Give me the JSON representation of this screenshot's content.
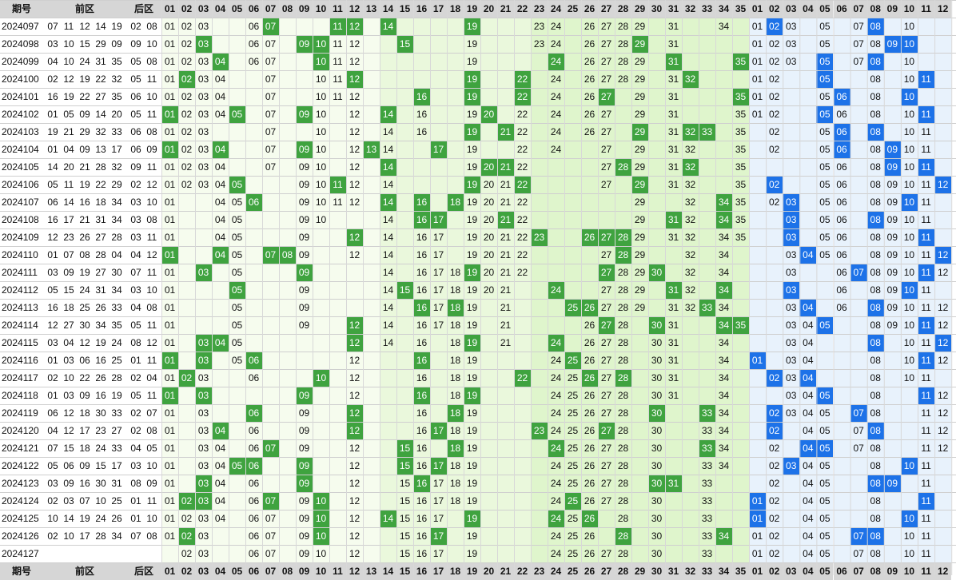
{
  "header": {
    "period": "期号",
    "front": "前区",
    "back": "后区",
    "front_cols": [
      "01",
      "02",
      "03",
      "04",
      "05",
      "06",
      "07",
      "08",
      "09",
      "10",
      "11",
      "12",
      "13",
      "14",
      "15",
      "16",
      "17",
      "18",
      "19",
      "20",
      "21",
      "22",
      "23",
      "24",
      "25",
      "26",
      "27",
      "28",
      "29",
      "30",
      "31",
      "32",
      "33",
      "34",
      "35"
    ],
    "back_cols": [
      "01",
      "02",
      "03",
      "04",
      "05",
      "06",
      "07",
      "08",
      "09",
      "10",
      "11",
      "12"
    ]
  },
  "colors": {
    "front_red": "#d81e06",
    "back_blue": "#0d5fd8",
    "hit_green": "#3fa33f",
    "hit_blue": "#1d72e8",
    "header_gray": "#d6d6d6",
    "zone_a": "#f6fcee",
    "zone_b": "#eaf8dc",
    "zone_c": "#dff5cc",
    "back_zone": "#e8f2fc"
  },
  "chart_data": {
    "type": "table",
    "title": "",
    "rows": [
      {
        "period": "2024097",
        "front": [
          "07",
          "11",
          "12",
          "14",
          "19"
        ],
        "back": [
          "02",
          "08"
        ],
        "fshow": [
          1,
          2,
          3,
          6,
          7,
          23,
          24,
          26,
          27,
          28,
          29,
          31,
          34
        ],
        "bshow": [
          1,
          2,
          3,
          5,
          7,
          8,
          10
        ]
      },
      {
        "period": "2024098",
        "front": [
          "03",
          "10",
          "15",
          "29",
          "09"
        ],
        "back": [
          "09",
          "10"
        ],
        "fshow": [
          1,
          2,
          3,
          6,
          7,
          11,
          12,
          19,
          23,
          24,
          26,
          27,
          28,
          29,
          31
        ],
        "bshow": [
          1,
          2,
          3,
          5,
          7,
          8
        ]
      },
      {
        "period": "2024099",
        "front": [
          "04",
          "10",
          "24",
          "31",
          "35"
        ],
        "back": [
          "05",
          "08"
        ],
        "fshow": [
          1,
          2,
          3,
          6,
          7,
          11,
          12,
          19,
          24,
          26,
          27,
          28,
          29,
          31
        ],
        "bshow": [
          1,
          2,
          3,
          7,
          8,
          10
        ]
      },
      {
        "period": "2024100",
        "front": [
          "02",
          "12",
          "19",
          "22",
          "32"
        ],
        "back": [
          "05",
          "11"
        ],
        "fshow": [
          1,
          2,
          3,
          4,
          7,
          10,
          11,
          12,
          19,
          24,
          26,
          27,
          28,
          29,
          31
        ],
        "bshow": [
          1,
          2,
          5,
          8,
          10
        ]
      },
      {
        "period": "2024101",
        "front": [
          "16",
          "19",
          "22",
          "27",
          "35"
        ],
        "back": [
          "06",
          "10"
        ],
        "fshow": [
          1,
          2,
          3,
          4,
          7,
          10,
          11,
          12,
          19,
          24,
          26,
          27,
          29,
          31
        ],
        "bshow": [
          1,
          2,
          5,
          8,
          10
        ]
      },
      {
        "period": "2024102",
        "front": [
          "01",
          "05",
          "09",
          "14",
          "20"
        ],
        "back": [
          "05",
          "11"
        ],
        "fshow": [
          2,
          3,
          4,
          7,
          10,
          12,
          16,
          19,
          22,
          24,
          26,
          27,
          29,
          31,
          35
        ],
        "bshow": [
          1,
          2,
          5,
          6,
          8,
          10
        ]
      },
      {
        "period": "2024103",
        "front": [
          "19",
          "21",
          "29",
          "32",
          "33"
        ],
        "back": [
          "06",
          "08"
        ],
        "fshow": [
          1,
          2,
          3,
          7,
          10,
          12,
          14,
          16,
          19,
          22,
          24,
          26,
          27,
          29,
          31,
          35
        ],
        "bshow": [
          2,
          5,
          8,
          10,
          11
        ]
      },
      {
        "period": "2024104",
        "front": [
          "01",
          "04",
          "09",
          "13",
          "17"
        ],
        "back": [
          "06",
          "09"
        ],
        "fshow": [
          1,
          2,
          3,
          7,
          10,
          12,
          14,
          19,
          22,
          24,
          27,
          29,
          31,
          32,
          35
        ],
        "bshow": [
          2,
          5,
          6,
          8,
          10,
          11
        ]
      },
      {
        "period": "2024105",
        "front": [
          "14",
          "20",
          "21",
          "28",
          "32"
        ],
        "back": [
          "09",
          "11"
        ],
        "fshow": [
          1,
          2,
          3,
          4,
          7,
          9,
          10,
          12,
          14,
          19,
          22,
          27,
          29,
          31,
          32,
          35
        ],
        "bshow": [
          5,
          6,
          8,
          9,
          10,
          11
        ]
      },
      {
        "period": "2024106",
        "front": [
          "05",
          "11",
          "19",
          "22",
          "29"
        ],
        "back": [
          "02",
          "12"
        ],
        "fshow": [
          1,
          2,
          3,
          4,
          9,
          10,
          12,
          14,
          19,
          20,
          21,
          22,
          27,
          29,
          31,
          32,
          35
        ],
        "bshow": [
          5,
          6,
          8,
          9,
          10,
          11
        ]
      },
      {
        "period": "2024107",
        "front": [
          "06",
          "14",
          "16",
          "18",
          "34"
        ],
        "back": [
          "03",
          "10"
        ],
        "fshow": [
          1,
          4,
          5,
          9,
          10,
          11,
          12,
          14,
          19,
          20,
          21,
          22,
          29,
          32,
          35
        ],
        "bshow": [
          2,
          5,
          6,
          8,
          9,
          10,
          11
        ]
      },
      {
        "period": "2024108",
        "front": [
          "16",
          "17",
          "21",
          "31",
          "34"
        ],
        "back": [
          "03",
          "08"
        ],
        "fshow": [
          1,
          4,
          5,
          9,
          10,
          14,
          16,
          19,
          20,
          21,
          22,
          29,
          32,
          35
        ],
        "bshow": [
          5,
          6,
          8,
          9,
          10,
          11
        ]
      },
      {
        "period": "2024109",
        "front": [
          "12",
          "23",
          "26",
          "27",
          "28"
        ],
        "back": [
          "03",
          "11"
        ],
        "fshow": [
          1,
          4,
          5,
          9,
          14,
          16,
          17,
          19,
          20,
          21,
          22,
          29,
          31,
          32,
          34,
          35
        ],
        "bshow": [
          3,
          5,
          6,
          8,
          9,
          10,
          11
        ]
      },
      {
        "period": "2024110",
        "front": [
          "01",
          "07",
          "08",
          "28",
          "04"
        ],
        "back": [
          "04",
          "12"
        ],
        "fshow": [
          1,
          5,
          9,
          12,
          14,
          16,
          17,
          19,
          20,
          21,
          22,
          27,
          28,
          29,
          32,
          34
        ],
        "bshow": [
          3,
          5,
          6,
          8,
          9,
          10,
          11
        ]
      },
      {
        "period": "2024111",
        "front": [
          "03",
          "09",
          "19",
          "27",
          "30"
        ],
        "back": [
          "07",
          "11"
        ],
        "fshow": [
          1,
          5,
          9,
          14,
          16,
          17,
          18,
          19,
          20,
          21,
          22,
          27,
          28,
          29,
          32,
          34
        ],
        "bshow": [
          3,
          6,
          8,
          9,
          10,
          11,
          12
        ]
      },
      {
        "period": "2024112",
        "front": [
          "05",
          "15",
          "24",
          "31",
          "34"
        ],
        "back": [
          "03",
          "10"
        ],
        "fshow": [
          1,
          5,
          9,
          14,
          16,
          17,
          18,
          19,
          20,
          21,
          27,
          28,
          29,
          32,
          34
        ],
        "bshow": [
          3,
          6,
          8,
          9,
          11
        ]
      },
      {
        "period": "2024113",
        "front": [
          "16",
          "18",
          "25",
          "26",
          "33"
        ],
        "back": [
          "04",
          "08"
        ],
        "fshow": [
          1,
          5,
          9,
          14,
          16,
          17,
          18,
          19,
          21,
          27,
          28,
          29,
          31,
          32,
          34
        ],
        "bshow": [
          3,
          6,
          8,
          9,
          10,
          11,
          12
        ]
      },
      {
        "period": "2024114",
        "front": [
          "12",
          "27",
          "30",
          "34",
          "35"
        ],
        "back": [
          "05",
          "11"
        ],
        "fshow": [
          1,
          5,
          9,
          14,
          16,
          17,
          18,
          19,
          21,
          26,
          27,
          28,
          31,
          34
        ],
        "bshow": [
          3,
          4,
          8,
          9,
          10,
          11,
          12
        ]
      },
      {
        "period": "2024115",
        "front": [
          "03",
          "04",
          "12",
          "19",
          "24"
        ],
        "back": [
          "08",
          "12"
        ],
        "fshow": [
          1,
          5,
          12,
          14,
          16,
          18,
          19,
          21,
          26,
          27,
          28,
          30,
          31,
          34
        ],
        "bshow": [
          3,
          4,
          8,
          10,
          11,
          12
        ]
      },
      {
        "period": "2024116",
        "front": [
          "01",
          "03",
          "06",
          "16",
          "25"
        ],
        "back": [
          "01",
          "11"
        ],
        "fshow": [
          1,
          3,
          5,
          12,
          16,
          18,
          19,
          24,
          26,
          27,
          28,
          30,
          31,
          34
        ],
        "bshow": [
          3,
          4,
          8,
          10,
          11,
          12
        ]
      },
      {
        "period": "2024117",
        "front": [
          "02",
          "10",
          "22",
          "26",
          "28"
        ],
        "back": [
          "02",
          "04"
        ],
        "fshow": [
          1,
          3,
          6,
          12,
          16,
          18,
          19,
          24,
          25,
          26,
          27,
          28,
          30,
          31,
          34
        ],
        "bshow": [
          3,
          4,
          8,
          10,
          11
        ]
      },
      {
        "period": "2024118",
        "front": [
          "01",
          "03",
          "09",
          "16",
          "19"
        ],
        "back": [
          "05",
          "11"
        ],
        "fshow": [
          1,
          3,
          12,
          16,
          18,
          19,
          24,
          25,
          26,
          27,
          28,
          30,
          31,
          34
        ],
        "bshow": [
          3,
          4,
          8,
          11,
          12
        ]
      },
      {
        "period": "2024119",
        "front": [
          "06",
          "12",
          "18",
          "30",
          "33"
        ],
        "back": [
          "02",
          "07"
        ],
        "fshow": [
          1,
          3,
          9,
          12,
          16,
          18,
          19,
          24,
          25,
          26,
          27,
          28,
          30,
          34
        ],
        "bshow": [
          3,
          4,
          5,
          8,
          11,
          12
        ]
      },
      {
        "period": "2024120",
        "front": [
          "04",
          "12",
          "17",
          "23",
          "27"
        ],
        "back": [
          "02",
          "08"
        ],
        "fshow": [
          1,
          3,
          6,
          9,
          12,
          16,
          18,
          19,
          24,
          25,
          26,
          27,
          28,
          30,
          33,
          34
        ],
        "bshow": [
          2,
          4,
          5,
          7,
          8,
          11,
          12
        ]
      },
      {
        "period": "2024121",
        "front": [
          "07",
          "15",
          "18",
          "24",
          "33"
        ],
        "back": [
          "04",
          "05"
        ],
        "fshow": [
          1,
          3,
          4,
          6,
          9,
          12,
          16,
          19,
          24,
          25,
          26,
          27,
          28,
          30,
          33,
          34
        ],
        "bshow": [
          2,
          4,
          5,
          7,
          8,
          11,
          12
        ]
      },
      {
        "period": "2024122",
        "front": [
          "05",
          "06",
          "09",
          "15",
          "17"
        ],
        "back": [
          "03",
          "10"
        ],
        "fshow": [
          1,
          3,
          4,
          6,
          9,
          12,
          15,
          16,
          18,
          19,
          24,
          25,
          26,
          27,
          28,
          30,
          33,
          34
        ],
        "bshow": [
          2,
          4,
          5,
          8,
          11
        ]
      },
      {
        "period": "2024123",
        "front": [
          "03",
          "09",
          "16",
          "30",
          "31"
        ],
        "back": [
          "08",
          "09"
        ],
        "fshow": [
          1,
          3,
          4,
          6,
          9,
          12,
          15,
          16,
          17,
          18,
          19,
          24,
          25,
          26,
          27,
          28,
          30,
          33
        ],
        "bshow": [
          2,
          4,
          5,
          8,
          11
        ]
      },
      {
        "period": "2024124",
        "front": [
          "02",
          "03",
          "07",
          "10",
          "25"
        ],
        "back": [
          "01",
          "11"
        ],
        "fshow": [
          1,
          3,
          4,
          6,
          9,
          12,
          15,
          16,
          17,
          18,
          19,
          24,
          25,
          26,
          27,
          28,
          30,
          33
        ],
        "bshow": [
          2,
          4,
          5,
          8,
          11
        ]
      },
      {
        "period": "2024125",
        "front": [
          "10",
          "14",
          "19",
          "24",
          "26"
        ],
        "back": [
          "01",
          "10"
        ],
        "fshow": [
          1,
          2,
          3,
          4,
          6,
          7,
          9,
          10,
          12,
          15,
          16,
          17,
          19,
          24,
          25,
          28,
          30,
          33
        ],
        "bshow": [
          1,
          2,
          4,
          5,
          8,
          11
        ]
      },
      {
        "period": "2024126",
        "front": [
          "02",
          "10",
          "17",
          "28",
          "34"
        ],
        "back": [
          "07",
          "08"
        ],
        "fshow": [
          1,
          2,
          3,
          6,
          7,
          9,
          10,
          12,
          15,
          16,
          17,
          19,
          24,
          25,
          26,
          28,
          30,
          33
        ],
        "bshow": [
          1,
          2,
          4,
          5,
          8,
          10,
          11
        ]
      },
      {
        "period": "2024127",
        "front": [],
        "back": [],
        "fshow": [
          2,
          3,
          6,
          7,
          9,
          10,
          12,
          15,
          16,
          17,
          19,
          24,
          25,
          26,
          27,
          28,
          30,
          33
        ],
        "bshow": [
          1,
          2,
          4,
          5,
          7,
          8,
          10,
          11
        ]
      }
    ]
  }
}
